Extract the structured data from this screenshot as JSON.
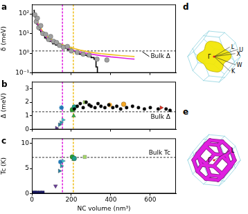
{
  "chart_data": [
    {
      "type": "scatter",
      "title": "a",
      "y_label": "δ (meV)",
      "log": "y",
      "grid": false,
      "tick_labels": "y",
      "xlim": [
        0,
        730
      ],
      "xticks": [
        0,
        200,
        400,
        600
      ],
      "ylim": [
        0.1,
        300
      ],
      "yticks": [
        {
          "value": 0.1,
          "label": "10⁻¹"
        },
        {
          "value": 1,
          "label": "10⁰"
        },
        {
          "value": 10,
          "label": "10¹"
        },
        {
          "value": 100,
          "label": "10²"
        }
      ],
      "series": [
        {
          "type": "scatter",
          "marker": "circle",
          "color": "#a0a0a0",
          "x": [
            15,
            22,
            28,
            35,
            45,
            55,
            70,
            85,
            95,
            110,
            125,
            140,
            160,
            180,
            200,
            230,
            260,
            290,
            330,
            380
          ],
          "values": [
            90,
            40,
            60,
            20,
            25,
            10,
            9,
            5,
            7,
            4,
            3.5,
            2.5,
            2,
            2.2,
            1.3,
            1.1,
            0.9,
            0.8,
            0.5,
            0.45
          ]
        },
        {
          "type": "line",
          "color": "#e020e0",
          "x": [
            20,
            30,
            40,
            60,
            80,
            100,
            130,
            160,
            200,
            250,
            300,
            350,
            400,
            450,
            500,
            520
          ],
          "values": [
            60,
            30,
            18,
            9,
            5.5,
            4,
            2.8,
            2.1,
            1.5,
            1.1,
            0.9,
            0.75,
            0.65,
            0.58,
            0.52,
            0.5
          ]
        },
        {
          "type": "line",
          "color": "#f0c020",
          "x": [
            20,
            30,
            40,
            60,
            80,
            100,
            130,
            160,
            200,
            250,
            300,
            350,
            400,
            450,
            500,
            520
          ],
          "values": [
            70,
            36,
            22,
            11,
            7,
            5,
            3.4,
            2.6,
            1.9,
            1.4,
            1.1,
            0.95,
            0.85,
            0.76,
            0.7,
            0.68
          ]
        },
        {
          "type": "line",
          "color": "#000000",
          "line_style": "steps",
          "x": [
            8,
            12,
            16,
            20,
            25,
            30,
            38,
            45,
            55,
            65,
            75,
            90,
            105,
            120,
            140,
            160,
            180,
            200,
            220,
            240,
            260,
            280,
            300,
            315,
            325,
            332
          ],
          "values": [
            150,
            100,
            70,
            45,
            30,
            25,
            15,
            12,
            8,
            6,
            5,
            4,
            3,
            2.6,
            2.2,
            1.8,
            1.5,
            1.3,
            1.1,
            0.9,
            0.8,
            0.7,
            0.6,
            0.5,
            0.2,
            0.1
          ]
        },
        {
          "type": "scatter",
          "marker": "square",
          "colors": [
            "#a6d96a"
          ],
          "x": [
            195
          ],
          "values": [
            1.7
          ]
        }
      ],
      "reference_lines": [
        {
          "axis": "x",
          "value": 155,
          "color": "#e020e0",
          "line_style": "dashed"
        },
        {
          "axis": "x",
          "value": 210,
          "color": "#f0c020",
          "line_style": "dashed"
        },
        {
          "axis": "y",
          "value": 1.3,
          "color": "#333333",
          "line_style": "dashed",
          "label": "Bulk Δ"
        }
      ]
    },
    {
      "type": "scatter",
      "title": "b",
      "y_label": "Δ (meV)",
      "grid": false,
      "tick_labels": "y",
      "xlim": [
        0,
        730
      ],
      "xticks": [
        0,
        200,
        400,
        600
      ],
      "ylim": [
        0,
        3.5
      ],
      "yticks": [
        0,
        1,
        2,
        3
      ],
      "series": [
        {
          "type": "scatter",
          "marker": "circle",
          "color": "#000000",
          "x": [
            215,
            230,
            245,
            260,
            275,
            290,
            300,
            320,
            335,
            350,
            370,
            390,
            410,
            430,
            450,
            480,
            510,
            540,
            570,
            600,
            640,
            680,
            700
          ],
          "values": [
            1.5,
            1.7,
            1.9,
            1.6,
            2.0,
            1.8,
            1.7,
            1.6,
            1.9,
            1.7,
            1.6,
            1.8,
            1.6,
            1.7,
            1.5,
            1.6,
            1.7,
            1.6,
            1.5,
            1.6,
            1.5,
            1.5,
            1.4
          ]
        },
        {
          "type": "scatter",
          "marker": "triangle-right",
          "colors": [
            "#5b3a8c",
            "#2a7fa0",
            "#2a9db0",
            "#40c0d0",
            "#e03020"
          ],
          "x": [
            125,
            140,
            148,
            158,
            655
          ],
          "values": [
            0.1,
            0.35,
            0.5,
            0.7,
            1.6
          ]
        },
        {
          "type": "scatter",
          "marker": "circle",
          "colors": [
            "#2ca02c",
            "#1f9e89",
            "#f5a623"
          ],
          "x": [
            205,
            215,
            465
          ],
          "values": [
            1.45,
            1.65,
            1.85
          ]
        },
        {
          "type": "scatter",
          "marker": "triangle-up",
          "colors": [
            "#33b040"
          ],
          "x": [
            212
          ],
          "values": [
            1.0
          ]
        },
        {
          "type": "scatter",
          "marker": "square",
          "colors": [
            "#a6d96a"
          ],
          "x": [
            268
          ],
          "values": [
            2.0
          ]
        },
        {
          "type": "scatter",
          "marker": "star",
          "colors": [
            "#1f77b4",
            "#f5a623"
          ],
          "x": [
            150,
            395
          ],
          "values": [
            1.6,
            1.8
          ]
        }
      ],
      "reference_lines": [
        {
          "axis": "x",
          "value": 155,
          "color": "#e020e0",
          "line_style": "dashed"
        },
        {
          "axis": "x",
          "value": 210,
          "color": "#f0c020",
          "line_style": "dashed"
        },
        {
          "axis": "y",
          "value": 1.3,
          "color": "#333333",
          "line_style": "dashed",
          "label": "Bulk Δ"
        }
      ]
    },
    {
      "type": "scatter",
      "title": "c",
      "x_label": "NC volume (nm³)",
      "y_label": "Tc (K)",
      "grid": false,
      "xlim": [
        0,
        730
      ],
      "xticks": [
        0,
        200,
        400,
        600
      ],
      "ylim": [
        0,
        11
      ],
      "yticks": [
        0,
        5,
        10
      ],
      "series": [
        {
          "type": "scatter",
          "marker": "square",
          "colors": [
            "#1a1a6e",
            "#1a1a6e",
            "#1a1a6e",
            "#1a1a6e",
            "#1a1a6e"
          ],
          "x": [
            5,
            15,
            25,
            40,
            55
          ],
          "values": [
            0.2,
            0.2,
            0.2,
            0.2,
            0.2
          ]
        },
        {
          "type": "scatter",
          "marker": "triangle-down",
          "colors": [
            "#6a3d9a"
          ],
          "x": [
            120
          ],
          "values": [
            1.5
          ]
        },
        {
          "type": "scatter",
          "marker": "triangle-right",
          "colors": [
            "#2a7fa0",
            "#2a9db0",
            "#40c0d0"
          ],
          "x": [
            140,
            150,
            158
          ],
          "values": [
            4.5,
            5.5,
            6.5
          ]
        },
        {
          "type": "scatter",
          "marker": "star",
          "colors": [
            "#1f77b4"
          ],
          "x": [
            145
          ],
          "values": [
            6.3
          ]
        },
        {
          "type": "scatter",
          "marker": "circle",
          "colors": [
            "#2ca02c",
            "#1f9e89"
          ],
          "x": [
            205,
            215
          ],
          "values": [
            7.3,
            7.0
          ]
        },
        {
          "type": "scatter",
          "marker": "triangle-up",
          "colors": [
            "#33b040"
          ],
          "x": [
            212
          ],
          "values": [
            6.8
          ]
        },
        {
          "type": "scatter",
          "marker": "square",
          "colors": [
            "#a6d96a"
          ],
          "x": [
            268
          ],
          "values": [
            7.3
          ]
        }
      ],
      "reference_lines": [
        {
          "axis": "x",
          "value": 155,
          "color": "#e020e0",
          "line_style": "dashed"
        },
        {
          "axis": "x",
          "value": 210,
          "color": "#f0c020",
          "line_style": "dashed"
        },
        {
          "axis": "y",
          "value": 7.2,
          "color": "#333333",
          "line_style": "dashed",
          "label": "Bulk Tc"
        }
      ]
    }
  ],
  "diagrams": [
    {
      "title": "d",
      "labels": [
        "Γ",
        "L",
        "U",
        "X",
        "W",
        "K"
      ]
    },
    {
      "title": "e",
      "labels": [
        "Γ",
        "L"
      ]
    }
  ]
}
